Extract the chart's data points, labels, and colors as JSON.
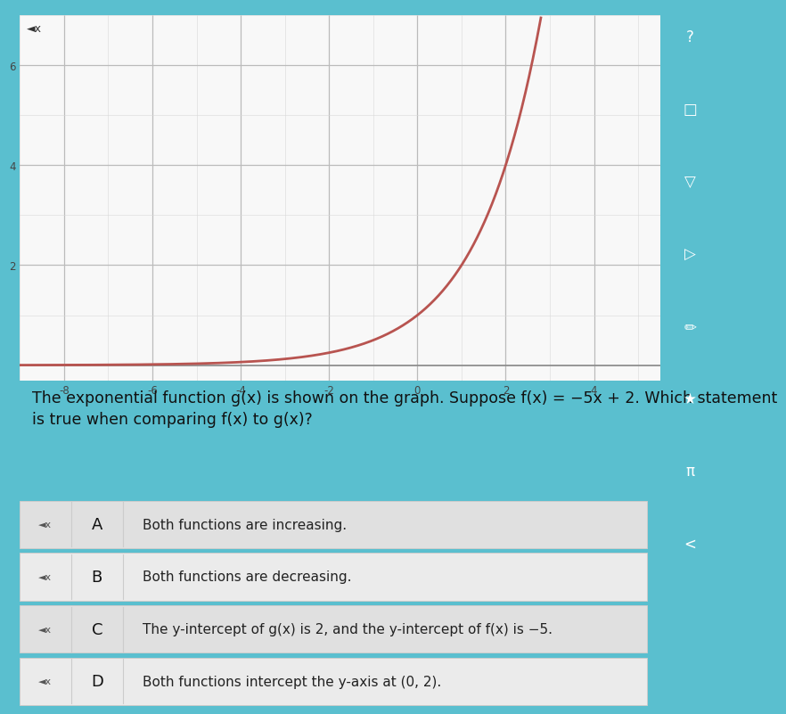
{
  "page_bg": "#5abfcf",
  "graph_bg": "#f8f8f8",
  "graph_border_color": "#cccccc",
  "graph_xlim": [
    -9,
    5.5
  ],
  "graph_ylim": [
    -0.3,
    7.0
  ],
  "graph_xticks": [
    -8,
    -6,
    -4,
    -2,
    0,
    2,
    4
  ],
  "graph_yticks": [
    2,
    4,
    6
  ],
  "curve_color": "#b85450",
  "curve_base": 2,
  "grid_minor_color": "#d8d8d8",
  "grid_major_color": "#bbbbbb",
  "axis_line_color": "#888888",
  "tick_label_color": "#444444",
  "title_text": "The exponential function g(x) is shown on the graph. Suppose f(x) = −5x + 2. Which statement\nis true when comparing f(x) to g(x)?",
  "title_fontsize": 12.5,
  "options": [
    {
      "letter": "A",
      "text": "Both functions are increasing."
    },
    {
      "letter": "B",
      "text": "Both functions are decreasing."
    },
    {
      "letter": "C",
      "text": "The y-intercept of g(x) is 2, and the y-intercept of f(x) is −5."
    },
    {
      "letter": "D",
      "text": "Both functions intercept the y-axis at (0, 2)."
    }
  ],
  "option_bg_colors": [
    "#e0e0e0",
    "#ebebeb",
    "#e0e0e0",
    "#ebebeb"
  ],
  "option_border_color": "#cccccc",
  "sidebar_bg": "#3ab0c0",
  "sidebar_icon_color": "#ffffff",
  "sidebar_icons": [
    "?",
    "□",
    "▽",
    "▷",
    "✏",
    "★",
    "π",
    "<"
  ]
}
